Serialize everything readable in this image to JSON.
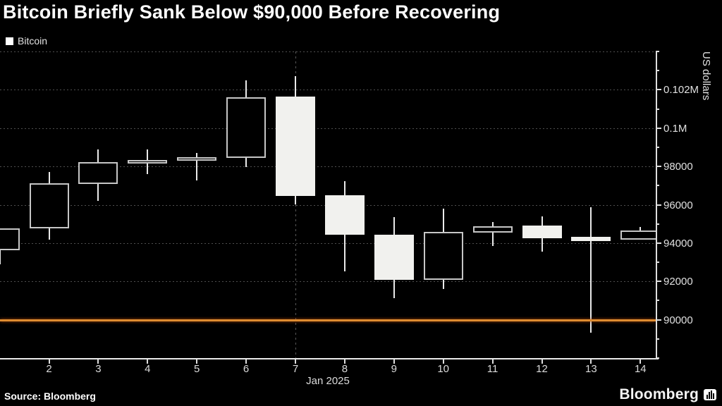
{
  "header": {
    "title": "Bitcoin Briefly Sank Below $90,000 Before Recovering",
    "legend": {
      "label": "Bitcoin",
      "swatch_color": "#ffffff"
    }
  },
  "footer": {
    "source": "Source: Bloomberg",
    "brand": "Bloomberg"
  },
  "chart_data": {
    "type": "candlestick",
    "title": "Bitcoin Briefly Sank Below $90,000 Before Recovering",
    "series_name": "Bitcoin",
    "ylabel": "US dollars",
    "x_axis_label": "Jan 2025",
    "ylim": [
      88000,
      104000
    ],
    "grid": "dotted-horizontal",
    "legend_position": "top-left",
    "y_ticks": [
      {
        "value": 102000,
        "label": "0.102M"
      },
      {
        "value": 100000,
        "label": "0.1M"
      },
      {
        "value": 98000,
        "label": "98000"
      },
      {
        "value": 96000,
        "label": "96000"
      },
      {
        "value": 94000,
        "label": "94000"
      },
      {
        "value": 92000,
        "label": "92000"
      },
      {
        "value": 90000,
        "label": "90000"
      }
    ],
    "y_minor_ticks": [
      104000,
      103000,
      101000,
      99000,
      97000,
      95000,
      93000,
      91000,
      89000,
      88000
    ],
    "gridlines": [
      104000,
      102000,
      100000,
      98000,
      96000,
      94000,
      92000
    ],
    "reference_line": {
      "value": 90000,
      "color": "#de8c31"
    },
    "event_vline_day": 7,
    "x_tick_days": [
      2,
      3,
      4,
      5,
      6,
      7,
      8,
      9,
      10,
      11,
      12,
      13,
      14
    ],
    "candles": [
      {
        "day": 1,
        "open": 93620,
        "high": 94760,
        "low": 92880,
        "close": 94760,
        "direction": "up",
        "partial": true
      },
      {
        "day": 2,
        "open": 94770,
        "high": 97720,
        "low": 94180,
        "close": 97130,
        "direction": "up"
      },
      {
        "day": 3,
        "open": 97080,
        "high": 98900,
        "low": 96200,
        "close": 98230,
        "direction": "up"
      },
      {
        "day": 4,
        "open": 98170,
        "high": 98870,
        "low": 97610,
        "close": 98350,
        "direction": "up"
      },
      {
        "day": 5,
        "open": 98290,
        "high": 98700,
        "low": 97270,
        "close": 98500,
        "direction": "up"
      },
      {
        "day": 6,
        "open": 98450,
        "high": 102480,
        "low": 97970,
        "close": 101620,
        "direction": "up"
      },
      {
        "day": 7,
        "open": 101640,
        "high": 102720,
        "low": 96000,
        "close": 96450,
        "direction": "down"
      },
      {
        "day": 8,
        "open": 96480,
        "high": 97220,
        "low": 92540,
        "close": 94420,
        "direction": "down"
      },
      {
        "day": 9,
        "open": 94450,
        "high": 95340,
        "low": 91120,
        "close": 92080,
        "direction": "down"
      },
      {
        "day": 10,
        "open": 92080,
        "high": 95790,
        "low": 91590,
        "close": 94600,
        "direction": "up"
      },
      {
        "day": 11,
        "open": 94540,
        "high": 95090,
        "low": 93830,
        "close": 94880,
        "direction": "up"
      },
      {
        "day": 12,
        "open": 94910,
        "high": 95400,
        "low": 93550,
        "close": 94270,
        "direction": "down"
      },
      {
        "day": 13,
        "open": 94320,
        "high": 95860,
        "low": 89310,
        "close": 94120,
        "direction": "down"
      },
      {
        "day": 14,
        "open": 94180,
        "high": 94850,
        "low": 94180,
        "close": 94640,
        "direction": "up",
        "partial": true
      }
    ]
  }
}
